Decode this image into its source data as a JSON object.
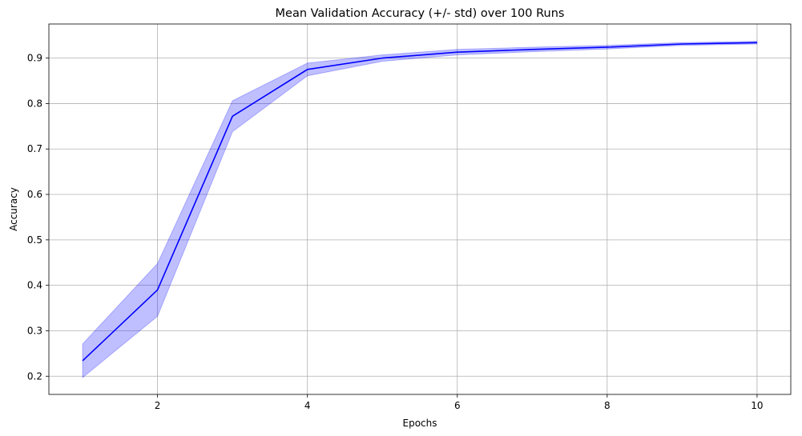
{
  "chart_data": {
    "type": "line",
    "title": "Mean Validation Accuracy (+/- std) over 100 Runs",
    "xlabel": "Epochs",
    "ylabel": "Accuracy",
    "xlim": [
      0.55,
      10.45
    ],
    "ylim": [
      0.16,
      0.975
    ],
    "xticks": [
      2,
      4,
      6,
      8,
      10
    ],
    "yticks": [
      0.2,
      0.3,
      0.4,
      0.5,
      0.6,
      0.7,
      0.8,
      0.9
    ],
    "grid": true,
    "colors": {
      "line": "#0000ff",
      "band": "#0000ff",
      "grid": "#b0b0b0",
      "axes": "#000000"
    },
    "series": [
      {
        "x": [
          1,
          2,
          3,
          4,
          5,
          6,
          7,
          8,
          9,
          10
        ],
        "mean": [
          0.234,
          0.39,
          0.772,
          0.875,
          0.9,
          0.913,
          0.919,
          0.924,
          0.931,
          0.934
        ],
        "std": [
          0.037,
          0.058,
          0.034,
          0.014,
          0.007,
          0.006,
          0.005,
          0.004,
          0.003,
          0.003
        ]
      }
    ]
  }
}
